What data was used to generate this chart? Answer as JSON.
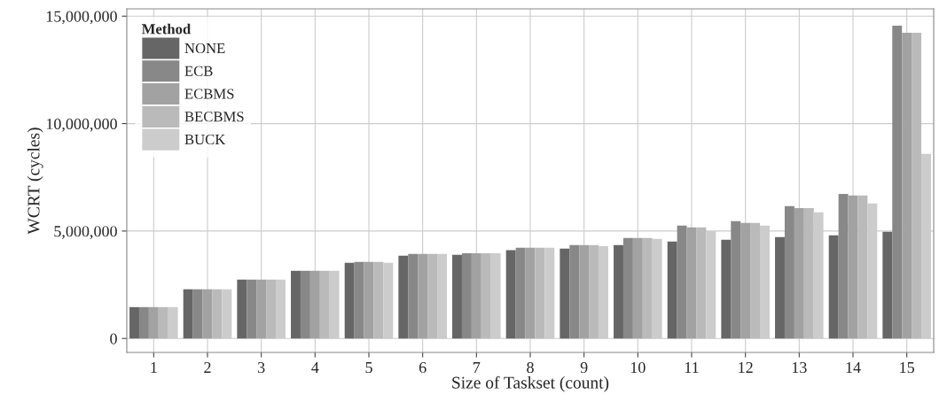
{
  "chart_data": {
    "type": "bar",
    "xlabel": "Size of Taskset (count)",
    "ylabel": "WCRT (cycles)",
    "legend_title": "Method",
    "categories": [
      "1",
      "2",
      "3",
      "4",
      "5",
      "6",
      "7",
      "8",
      "9",
      "10",
      "11",
      "12",
      "13",
      "14",
      "15"
    ],
    "series": [
      {
        "name": "NONE",
        "color": "#666666",
        "values": [
          1460000,
          2290000,
          2740000,
          3150000,
          3520000,
          3850000,
          3890000,
          4110000,
          4180000,
          4350000,
          4510000,
          4590000,
          4720000,
          4800000,
          4960000
        ]
      },
      {
        "name": "ECB",
        "color": "#888888",
        "values": [
          1460000,
          2290000,
          2740000,
          3150000,
          3560000,
          3930000,
          3970000,
          4220000,
          4350000,
          4680000,
          5250000,
          5460000,
          6160000,
          6730000,
          14560000
        ]
      },
      {
        "name": "ECBMS",
        "color": "#a2a2a2",
        "values": [
          1460000,
          2290000,
          2740000,
          3150000,
          3560000,
          3930000,
          3970000,
          4220000,
          4350000,
          4680000,
          5170000,
          5380000,
          6070000,
          6650000,
          14230000
        ]
      },
      {
        "name": "BECBMS",
        "color": "#bababa",
        "values": [
          1460000,
          2290000,
          2740000,
          3150000,
          3560000,
          3930000,
          3970000,
          4220000,
          4350000,
          4680000,
          5170000,
          5380000,
          6070000,
          6650000,
          14230000
        ]
      },
      {
        "name": "BUCK",
        "color": "#cccccc",
        "values": [
          1460000,
          2290000,
          2740000,
          3150000,
          3520000,
          3930000,
          3970000,
          4220000,
          4300000,
          4640000,
          5000000,
          5250000,
          5870000,
          6280000,
          8590000
        ]
      }
    ],
    "ylim": [
      -650000,
      15340000
    ],
    "yticks": [
      {
        "value": 0,
        "label": "0"
      },
      {
        "value": 5000000,
        "label": "5,000,000"
      },
      {
        "value": 10000000,
        "label": "10,000,000"
      },
      {
        "value": 15000000,
        "label": "15,000,000"
      }
    ],
    "grid": true,
    "legend": "top left"
  }
}
